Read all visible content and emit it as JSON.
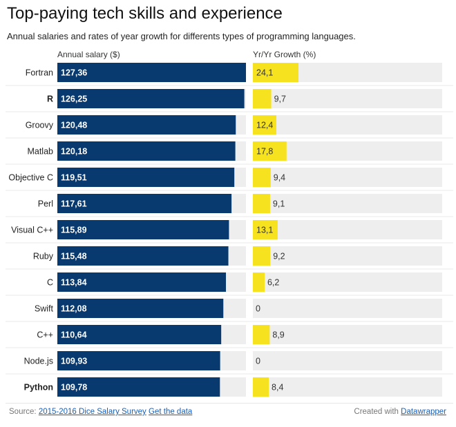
{
  "title": "Top-paying tech skills and experience",
  "subtitle": "Annual salaries and rates of year growth for differents types of programming languages.",
  "colors": {
    "salary_bar": "#083a70",
    "salary_track": "#eeeeee",
    "growth_bar": "#f7e21f",
    "growth_track": "#eeeeee",
    "link": "#1a5fb4"
  },
  "chart_data": {
    "type": "bar",
    "categories": [
      "Fortran",
      "R",
      "Groovy",
      "Matlab",
      "Objective C",
      "Perl",
      "Visual C++",
      "Ruby",
      "C",
      "Swift",
      "C++",
      "Node.js",
      "Python"
    ],
    "highlighted": [
      "R",
      "Python"
    ],
    "series": [
      {
        "name": "Annual salary ($)",
        "values": [
          127.36,
          126.25,
          120.48,
          120.18,
          119.51,
          117.61,
          115.89,
          115.48,
          113.84,
          112.08,
          110.64,
          109.93,
          109.78
        ],
        "labels": [
          "127,36",
          "126,25",
          "120,48",
          "120,18",
          "119,51",
          "117,61",
          "115,89",
          "115,48",
          "113,84",
          "112,08",
          "110,64",
          "109,93",
          "109,78"
        ],
        "range": [
          0,
          127.36
        ]
      },
      {
        "name": "Yr/Yr Growth (%)",
        "values": [
          24.1,
          9.7,
          12.4,
          17.8,
          9.4,
          9.1,
          13.1,
          9.2,
          6.2,
          0,
          8.9,
          0,
          8.4
        ],
        "labels": [
          "24,1",
          "9,7",
          "12,4",
          "17,8",
          "9,4",
          "9,1",
          "13,1",
          "9,2",
          "6,2",
          "0",
          "8,9",
          "0",
          "8,4"
        ],
        "range": [
          0,
          100
        ]
      }
    ]
  },
  "footer": {
    "source_prefix": "Source: ",
    "source_link": "2015-2016 Dice Salary Survey",
    "get_data_link": "Get the data",
    "created_prefix": "Created with ",
    "created_link": "Datawrapper"
  }
}
